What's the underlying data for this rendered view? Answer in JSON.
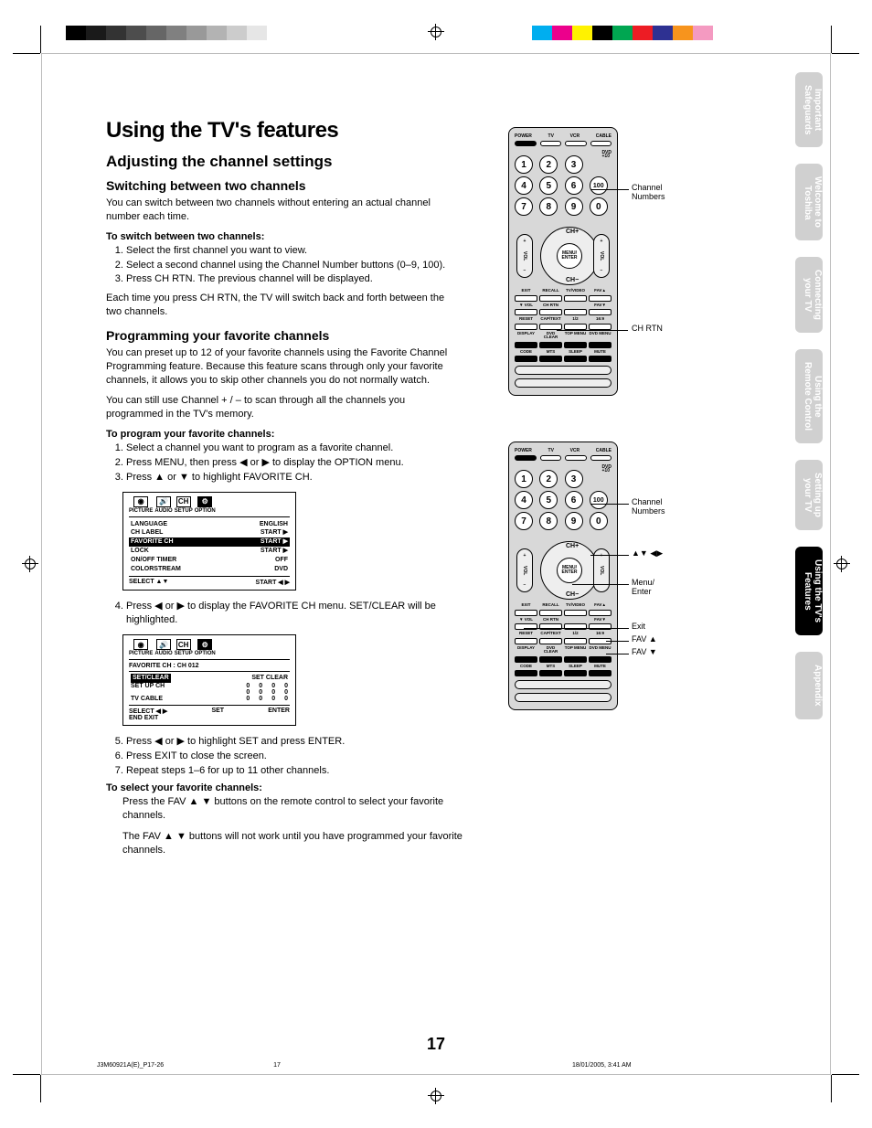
{
  "printer_bars": {
    "left_colors": [
      "#000000",
      "#1a1a1a",
      "#333333",
      "#4d4d4d",
      "#666666",
      "#808080",
      "#999999",
      "#b3b3b3",
      "#cccccc",
      "#e6e6e6"
    ],
    "right_colors": [
      "#ffffff",
      "#00aeef",
      "#ec008c",
      "#fff200",
      "#000000",
      "#00a651",
      "#ed1c24",
      "#2e3192",
      "#f7941d",
      "#f49ac1"
    ]
  },
  "page_title": "Using the TV's features",
  "section1": {
    "heading": "Adjusting the channel settings",
    "sub1": "Switching between two channels",
    "para1": "You can switch between two channels without entering an actual channel number each time.",
    "lead1": "To switch between two channels:",
    "steps1": [
      "Select the first channel you want to view.",
      "Select a second channel using the Channel Number buttons (0–9, 100).",
      "Press CH RTN. The previous channel will be displayed."
    ],
    "tail1": "Each time you press CH RTN, the TV will switch back and forth between the two channels."
  },
  "section2": {
    "heading": "Programming your favorite channels",
    "para1": "You can preset up to 12 of your favorite channels using the Favorite Channel Programming feature. Because this feature scans through only your favorite channels, it allows you to skip other channels you do not normally watch.",
    "para2": "You can still use Channel + / – to scan through all the channels you programmed in the TV's memory.",
    "lead1": "To program your favorite channels:",
    "steps_a": [
      "Select a channel you want to program as a favorite channel.",
      "Press MENU, then press ◀ or ▶ to display the OPTION menu.",
      "Press ▲ or ▼ to highlight FAVORITE CH."
    ],
    "step4": "Press ◀ or ▶ to display the FAVORITE CH menu. SET/CLEAR will be highlighted.",
    "steps_b": [
      "Press ◀ or ▶ to highlight SET and press ENTER.",
      "Press EXIT to close the screen.",
      "Repeat steps 1–6 for up to 11 other channels."
    ],
    "lead2": "To select your favorite channels:",
    "tail2a": "Press the FAV ▲ ▼ buttons on the remote control to select your favorite channels.",
    "tail2b": "The FAV ▲ ▼ buttons will not work until you have programmed your favorite channels."
  },
  "osd1": {
    "tabs": [
      "PICTURE",
      "AUDIO",
      "SETUP",
      "OPTION"
    ],
    "rows": [
      {
        "l": "LANGUAGE",
        "r": "ENGLISH"
      },
      {
        "l": "CH LABEL",
        "r": "START  ▶"
      },
      {
        "l": "FAVORITE CH",
        "r": "START  ▶",
        "hi": true
      },
      {
        "l": "LOCK",
        "r": "START  ▶"
      },
      {
        "l": "ON/OFF TIMER",
        "r": "OFF"
      },
      {
        "l": "COLORSTREAM",
        "r": "DVD"
      }
    ],
    "foot_l": "SELECT    ▲▼",
    "foot_r": "START        ◀ ▶"
  },
  "osd2": {
    "tabs": [
      "PICTURE",
      "AUDIO",
      "SETUP",
      "OPTION"
    ],
    "title": "FAVORITE CH : CH 012",
    "row_hi": {
      "l": "SET/CLEAR",
      "r": "SET CLEAR"
    },
    "rows": [
      {
        "l": "SET UP CH",
        "n": [
          "0",
          "0",
          "0",
          "0"
        ]
      },
      {
        "l": "",
        "n": [
          "0",
          "0",
          "0",
          "0"
        ]
      },
      {
        "l": "TV CABLE",
        "n": [
          "0",
          "0",
          "0",
          "0"
        ]
      }
    ],
    "foot": {
      "a": "SELECT   ◀ ▶",
      "b": "SET",
      "c": "ENTER",
      "d": "END        EXIT"
    }
  },
  "remote": {
    "top_labels": [
      "POWER",
      "TV",
      "VCR",
      "CABLE"
    ],
    "dvd_label": "DVD",
    "plus10": "+10",
    "numbers": [
      "1",
      "2",
      "3",
      "4",
      "5",
      "6",
      "7",
      "8",
      "9",
      "0"
    ],
    "hundred": "100",
    "ch_plus": "CH+",
    "ch_minus": "CH−",
    "vol_minus": "VOL −",
    "vol_plus": "VOL +",
    "menu_enter": "MENU/\nENTER",
    "row1_labels": [
      "EXIT",
      "RECALL",
      "TV/VIDEO",
      "FAV▲"
    ],
    "row2_labels": [
      "▼ VOL",
      "CH RTN",
      "",
      "FAV▼"
    ],
    "row3_labels": [
      "RESET",
      "CAP/TEXT",
      "1/2",
      "16:9"
    ],
    "row4_labels": [
      "DISPLAY",
      "DVD CLEAR",
      "TOP MENU",
      "DVD MENU"
    ],
    "row5_labels": [
      "CODE",
      "MTS",
      "SLEEP",
      "MUTE"
    ]
  },
  "callouts1": {
    "ch_numbers": "Channel\nNumbers",
    "ch_rtn": "CH RTN"
  },
  "callouts2": {
    "ch_numbers": "Channel\nNumbers",
    "arrows": "▲▼ ◀▶",
    "menu_enter": "Menu/\nEnter",
    "exit": "Exit",
    "fav_up": "FAV ▲",
    "fav_dn": "FAV ▼"
  },
  "side_tabs": [
    {
      "label": "Important\nSafeguards",
      "active": false
    },
    {
      "label": "Welcome to\nToshiba",
      "active": false
    },
    {
      "label": "Connecting\nyour TV",
      "active": false
    },
    {
      "label": "Using the\nRemote Control",
      "active": false
    },
    {
      "label": "Setting up\nyour TV",
      "active": false
    },
    {
      "label": "Using the TV's\nFeatures",
      "active": true
    },
    {
      "label": "Appendix",
      "active": false
    }
  ],
  "page_number": "17",
  "footer": {
    "doc": "J3M60921A(E)_P17-26",
    "pg": "17",
    "ts": "18/01/2005, 3:41 AM"
  }
}
